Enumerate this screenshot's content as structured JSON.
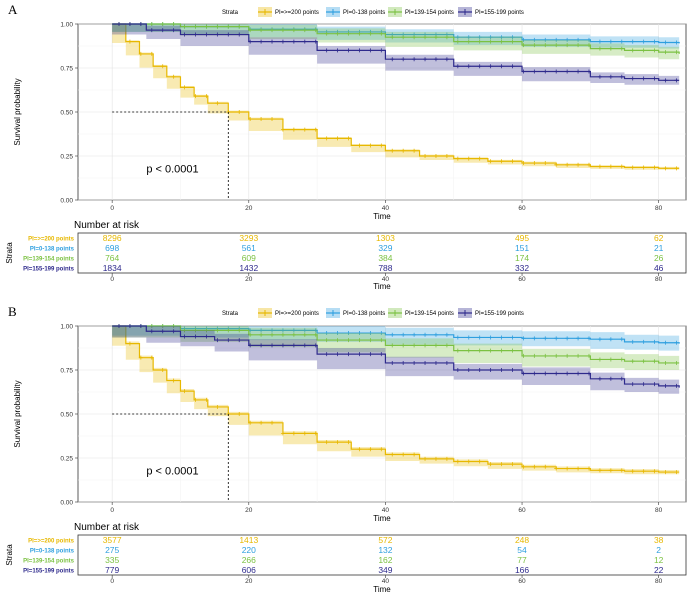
{
  "chart_data": [
    {
      "type": "line",
      "panel_label": "A",
      "legend_title": "Strata",
      "ylabel": "Survival probability",
      "xlabel": "Time",
      "xlim": [
        -5,
        84
      ],
      "ylim": [
        0,
        1
      ],
      "x_ticks": [
        "0",
        "20",
        "40",
        "60",
        "80"
      ],
      "y_ticks": [
        "0.00",
        "0.25",
        "0.50",
        "0.75",
        "1.00"
      ],
      "pvalue": "p < 0.0001",
      "median_survival": {
        "x": 17,
        "y": 0.5
      },
      "series": [
        {
          "name": "PI=>=200 points",
          "color": "#E7B800",
          "x": [
            0,
            2,
            4,
            6,
            8,
            10,
            12,
            14,
            17,
            20,
            25,
            30,
            35,
            40,
            45,
            50,
            55,
            60,
            65,
            70,
            75,
            80,
            83
          ],
          "y": [
            1.0,
            0.9,
            0.83,
            0.76,
            0.7,
            0.64,
            0.59,
            0.55,
            0.5,
            0.46,
            0.4,
            0.35,
            0.31,
            0.28,
            0.25,
            0.235,
            0.22,
            0.21,
            0.2,
            0.19,
            0.185,
            0.18,
            0.18
          ],
          "ci": 0.008
        },
        {
          "name": "PI=0-138 points",
          "color": "#2E9FDF",
          "x": [
            0,
            10,
            20,
            30,
            40,
            50,
            60,
            70,
            80,
            83
          ],
          "y": [
            1.0,
            0.985,
            0.97,
            0.955,
            0.94,
            0.925,
            0.91,
            0.9,
            0.895,
            0.89
          ],
          "ci": 0.03
        },
        {
          "name": "PI=139-154 points",
          "color": "#7BC142",
          "x": [
            0,
            10,
            20,
            30,
            40,
            50,
            60,
            70,
            75,
            80,
            83
          ],
          "y": [
            1.0,
            0.985,
            0.965,
            0.945,
            0.925,
            0.9,
            0.88,
            0.86,
            0.85,
            0.84,
            0.83
          ],
          "ci": 0.03
        },
        {
          "name": "PI=155-199 points",
          "color": "#2E2A8C",
          "x": [
            0,
            5,
            10,
            20,
            30,
            40,
            50,
            60,
            70,
            75,
            80,
            83
          ],
          "y": [
            1.0,
            0.965,
            0.94,
            0.9,
            0.85,
            0.8,
            0.76,
            0.73,
            0.7,
            0.69,
            0.68,
            0.68
          ],
          "ci": 0.025
        }
      ],
      "risk_table": {
        "title": "Number at risk",
        "strata_label": "Strata",
        "xlabel": "Time",
        "times": [
          0,
          20,
          40,
          60,
          80
        ],
        "tick_labels": [
          "0",
          "20",
          "40",
          "60",
          "80"
        ],
        "rows": [
          {
            "label": "PI=>=200 points",
            "values": [
              "8296",
              "3293",
              "1303",
              "495",
              "62"
            ]
          },
          {
            "label": "PI=0-138 points",
            "values": [
              "698",
              "561",
              "329",
              "151",
              "21"
            ]
          },
          {
            "label": "PI=139-154 points",
            "values": [
              "764",
              "609",
              "384",
              "174",
              "26"
            ]
          },
          {
            "label": "PI=155-199 points",
            "values": [
              "1834",
              "1432",
              "788",
              "332",
              "46"
            ]
          }
        ]
      }
    },
    {
      "type": "line",
      "panel_label": "B",
      "legend_title": "Strata",
      "ylabel": "Survival probability",
      "xlabel": "Time",
      "xlim": [
        -5,
        84
      ],
      "ylim": [
        0,
        1
      ],
      "x_ticks": [
        "0",
        "20",
        "40",
        "60",
        "80"
      ],
      "y_ticks": [
        "0.00",
        "0.25",
        "0.50",
        "0.75",
        "1.00"
      ],
      "pvalue": "p < 0.0001",
      "median_survival": {
        "x": 17,
        "y": 0.5
      },
      "series": [
        {
          "name": "PI=>=200 points",
          "color": "#E7B800",
          "x": [
            0,
            2,
            4,
            6,
            8,
            10,
            12,
            14,
            17,
            20,
            25,
            30,
            35,
            40,
            45,
            50,
            55,
            60,
            65,
            70,
            75,
            80,
            83
          ],
          "y": [
            1.0,
            0.9,
            0.82,
            0.75,
            0.69,
            0.63,
            0.58,
            0.54,
            0.5,
            0.45,
            0.39,
            0.34,
            0.3,
            0.27,
            0.245,
            0.23,
            0.215,
            0.2,
            0.19,
            0.18,
            0.175,
            0.17,
            0.17
          ],
          "ci": 0.012
        },
        {
          "name": "PI=0-138 points",
          "color": "#2E9FDF",
          "x": [
            0,
            10,
            20,
            30,
            40,
            50,
            60,
            70,
            75,
            80,
            83
          ],
          "y": [
            1.0,
            0.985,
            0.975,
            0.96,
            0.95,
            0.935,
            0.93,
            0.925,
            0.91,
            0.905,
            0.9
          ],
          "ci": 0.04
        },
        {
          "name": "PI=139-154 points",
          "color": "#7BC142",
          "x": [
            0,
            10,
            20,
            30,
            40,
            50,
            60,
            70,
            75,
            80,
            83
          ],
          "y": [
            1.0,
            0.975,
            0.95,
            0.92,
            0.89,
            0.86,
            0.83,
            0.81,
            0.8,
            0.79,
            0.79
          ],
          "ci": 0.04
        },
        {
          "name": "PI=155-199 points",
          "color": "#2E2A8C",
          "x": [
            0,
            5,
            10,
            15,
            20,
            30,
            40,
            50,
            60,
            70,
            75,
            80,
            83
          ],
          "y": [
            1.0,
            0.97,
            0.94,
            0.92,
            0.89,
            0.84,
            0.79,
            0.75,
            0.73,
            0.7,
            0.67,
            0.66,
            0.65
          ],
          "ci": 0.035
        }
      ],
      "risk_table": {
        "title": "Number at risk",
        "strata_label": "Strata",
        "xlabel": "Time",
        "times": [
          0,
          20,
          40,
          60,
          80
        ],
        "tick_labels": [
          "0",
          "20",
          "40",
          "60",
          "80"
        ],
        "rows": [
          {
            "label": "PI=>=200 points",
            "values": [
              "3577",
              "1413",
              "572",
              "248",
              "38"
            ]
          },
          {
            "label": "PI=0-138 points",
            "values": [
              "275",
              "220",
              "132",
              "54",
              "2"
            ]
          },
          {
            "label": "PI=139-154 points",
            "values": [
              "335",
              "266",
              "162",
              "77",
              "12"
            ]
          },
          {
            "label": "PI=155-199 points",
            "values": [
              "779",
              "606",
              "349",
              "166",
              "22"
            ]
          }
        ]
      }
    }
  ]
}
